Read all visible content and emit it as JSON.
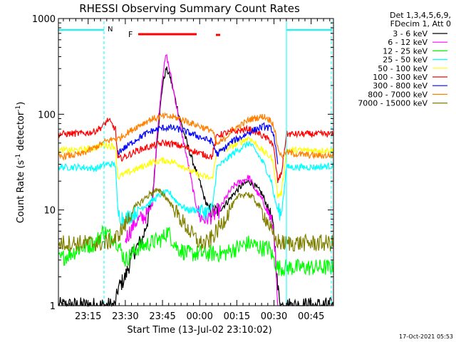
{
  "chart_data": {
    "type": "line",
    "title": "RHESSI Observing Summary Count Rates",
    "xlabel": "Start Time (13-Jul-02 23:10:02)",
    "ylabel_main": "Count Rate (s",
    "ylabel_sup1": "-1",
    "ylabel_mid": " detector",
    "ylabel_sup2": "-1",
    "ylabel_end": ")",
    "yscale": "log",
    "ylim": [
      1,
      1000
    ],
    "xlim_minutes": [
      -12,
      99
    ],
    "y_ticks": [
      {
        "value": 1000,
        "label": "1000"
      },
      {
        "value": 100,
        "label": "100"
      },
      {
        "value": 10,
        "label": "10"
      },
      {
        "value": 1,
        "label": "1"
      }
    ],
    "x_ticks": [
      {
        "minutes": 0,
        "label": "23:15"
      },
      {
        "minutes": 15,
        "label": "23:30"
      },
      {
        "minutes": 30,
        "label": "23:45"
      },
      {
        "minutes": 45,
        "label": "00:00"
      },
      {
        "minutes": 60,
        "label": "00:15"
      },
      {
        "minutes": 75,
        "label": "00:30"
      },
      {
        "minutes": 90,
        "label": "00:45"
      }
    ],
    "legend_header": [
      "Det 1,3,4,5,6,9,",
      "FDecim 1, Att 0"
    ],
    "series": [
      {
        "name": "3 - 6 keV",
        "color": "#000000",
        "points": [
          [
            -12,
            1
          ],
          [
            11,
            1
          ],
          [
            12,
            1.5
          ],
          [
            15,
            2
          ],
          [
            18,
            3.5
          ],
          [
            22,
            5
          ],
          [
            24,
            8
          ],
          [
            26,
            14
          ],
          [
            28,
            60
          ],
          [
            30,
            200
          ],
          [
            31.5,
            300
          ],
          [
            33,
            250
          ],
          [
            35,
            150
          ],
          [
            37,
            90
          ],
          [
            39,
            60
          ],
          [
            41,
            40
          ],
          [
            43,
            28
          ],
          [
            45,
            20
          ],
          [
            47,
            13
          ],
          [
            49,
            10
          ],
          [
            51,
            9.5
          ],
          [
            53,
            10
          ],
          [
            56,
            12
          ],
          [
            59,
            15
          ],
          [
            62,
            18
          ],
          [
            65,
            20
          ],
          [
            67,
            18
          ],
          [
            70,
            15
          ],
          [
            73,
            10
          ],
          [
            75,
            6
          ],
          [
            76.5,
            1.5
          ],
          [
            78,
            1
          ],
          [
            99,
            1
          ]
        ]
      },
      {
        "name": "6 - 12 keV",
        "color": "#ff00ff",
        "points": [
          [
            15,
            5
          ],
          [
            17,
            6
          ],
          [
            19,
            7.5
          ],
          [
            21,
            8
          ],
          [
            24,
            9
          ],
          [
            26,
            12
          ],
          [
            28,
            70
          ],
          [
            30,
            250
          ],
          [
            31.5,
            420
          ],
          [
            33,
            280
          ],
          [
            35,
            150
          ],
          [
            37,
            80
          ],
          [
            39,
            45
          ],
          [
            41,
            25
          ],
          [
            43,
            13
          ],
          [
            45,
            8.5
          ],
          [
            47,
            8
          ],
          [
            49,
            8.5
          ],
          [
            51,
            9
          ],
          [
            53,
            10
          ],
          [
            56,
            14
          ],
          [
            59,
            18
          ],
          [
            62,
            20
          ],
          [
            65,
            22
          ],
          [
            67,
            17
          ],
          [
            70,
            13
          ],
          [
            73,
            9
          ],
          [
            75,
            6
          ],
          [
            76.5,
            1
          ]
        ]
      },
      {
        "name": "12 - 25 keV",
        "color": "#00ff00",
        "points": [
          [
            -12,
            3
          ],
          [
            -3,
            4
          ],
          [
            3,
            4.5
          ],
          [
            6,
            6
          ],
          [
            11,
            5
          ],
          [
            15,
            3
          ],
          [
            20,
            4
          ],
          [
            25,
            4.5
          ],
          [
            30,
            5
          ],
          [
            32,
            6
          ],
          [
            36,
            4
          ],
          [
            40,
            3.5
          ],
          [
            45,
            3.5
          ],
          [
            50,
            3.5
          ],
          [
            55,
            3.5
          ],
          [
            60,
            4
          ],
          [
            65,
            4.5
          ],
          [
            70,
            4
          ],
          [
            73,
            4
          ],
          [
            75,
            3
          ],
          [
            76.5,
            2.5
          ],
          [
            78,
            2.5
          ],
          [
            80,
            2.5
          ],
          [
            85,
            2.5
          ],
          [
            90,
            2.5
          ],
          [
            99,
            2.5
          ]
        ]
      },
      {
        "name": "25 - 50 keV",
        "color": "#00ffff",
        "points": [
          [
            -12,
            28
          ],
          [
            -3,
            28
          ],
          [
            3,
            27
          ],
          [
            7,
            30
          ],
          [
            11,
            30
          ],
          [
            12,
            9
          ],
          [
            15,
            8
          ],
          [
            20,
            10
          ],
          [
            25,
            12
          ],
          [
            30,
            15
          ],
          [
            33,
            15
          ],
          [
            36,
            12
          ],
          [
            40,
            10
          ],
          [
            45,
            10
          ],
          [
            48,
            9.5
          ],
          [
            50,
            10
          ],
          [
            52,
            28
          ],
          [
            55,
            32
          ],
          [
            58,
            38
          ],
          [
            62,
            45
          ],
          [
            65,
            50
          ],
          [
            68,
            40
          ],
          [
            71,
            30
          ],
          [
            74,
            20
          ],
          [
            75,
            14
          ],
          [
            76.5,
            10
          ],
          [
            78,
            9
          ],
          [
            80,
            28
          ],
          [
            85,
            28
          ],
          [
            92,
            28
          ],
          [
            99,
            29
          ]
        ]
      },
      {
        "name": "50 - 100 keV",
        "color": "#ffff00",
        "points": [
          [
            -12,
            42
          ],
          [
            -3,
            42
          ],
          [
            3,
            45
          ],
          [
            6,
            48
          ],
          [
            11,
            46
          ],
          [
            12,
            22
          ],
          [
            15,
            24
          ],
          [
            20,
            27
          ],
          [
            25,
            31
          ],
          [
            30,
            33
          ],
          [
            34,
            32
          ],
          [
            38,
            29
          ],
          [
            42,
            25
          ],
          [
            45,
            23
          ],
          [
            48,
            22
          ],
          [
            50,
            21
          ],
          [
            52,
            40
          ],
          [
            55,
            43
          ],
          [
            58,
            46
          ],
          [
            62,
            52
          ],
          [
            65,
            57
          ],
          [
            68,
            48
          ],
          [
            71,
            40
          ],
          [
            74,
            35
          ],
          [
            75,
            28
          ],
          [
            76.5,
            14
          ],
          [
            78,
            15
          ],
          [
            80,
            42
          ],
          [
            85,
            42
          ],
          [
            92,
            42
          ],
          [
            99,
            42
          ]
        ]
      },
      {
        "name": "100 - 300 keV",
        "color": "#ff0000",
        "points": [
          [
            -12,
            62
          ],
          [
            -3,
            63
          ],
          [
            2,
            65
          ],
          [
            6,
            75
          ],
          [
            8,
            88
          ],
          [
            11,
            70
          ],
          [
            12,
            34
          ],
          [
            15,
            36
          ],
          [
            20,
            42
          ],
          [
            25,
            46
          ],
          [
            30,
            50
          ],
          [
            34,
            49
          ],
          [
            38,
            46
          ],
          [
            42,
            42
          ],
          [
            45,
            39
          ],
          [
            48,
            37
          ],
          [
            50,
            36
          ],
          [
            52,
            60
          ],
          [
            55,
            63
          ],
          [
            58,
            65
          ],
          [
            62,
            68
          ],
          [
            65,
            70
          ],
          [
            68,
            65
          ],
          [
            71,
            58
          ],
          [
            74,
            52
          ],
          [
            75,
            42
          ],
          [
            76.5,
            20
          ],
          [
            78,
            24
          ],
          [
            80,
            62
          ],
          [
            85,
            62
          ],
          [
            92,
            62
          ],
          [
            99,
            62
          ]
        ]
      },
      {
        "name": "300 - 800 keV",
        "color": "#0000ff",
        "points": [
          [
            12,
            40
          ],
          [
            15,
            45
          ],
          [
            20,
            56
          ],
          [
            25,
            66
          ],
          [
            30,
            72
          ],
          [
            34,
            72
          ],
          [
            38,
            68
          ],
          [
            42,
            62
          ],
          [
            45,
            58
          ],
          [
            48,
            54
          ],
          [
            50,
            52
          ],
          [
            52,
            38
          ],
          [
            55,
            44
          ],
          [
            58,
            52
          ],
          [
            62,
            58
          ],
          [
            65,
            65
          ],
          [
            68,
            70
          ],
          [
            71,
            75
          ],
          [
            74,
            70
          ],
          [
            75,
            60
          ],
          [
            76.5,
            30
          ]
        ]
      },
      {
        "name": "800 - 7000 keV",
        "color": "#ff8000",
        "points": [
          [
            -12,
            36
          ],
          [
            -3,
            38
          ],
          [
            3,
            45
          ],
          [
            7,
            52
          ],
          [
            11,
            56
          ],
          [
            12,
            55
          ],
          [
            15,
            62
          ],
          [
            20,
            75
          ],
          [
            25,
            88
          ],
          [
            30,
            95
          ],
          [
            34,
            94
          ],
          [
            38,
            88
          ],
          [
            42,
            80
          ],
          [
            45,
            75
          ],
          [
            48,
            70
          ],
          [
            50,
            68
          ],
          [
            52,
            48
          ],
          [
            55,
            55
          ],
          [
            58,
            68
          ],
          [
            62,
            78
          ],
          [
            65,
            88
          ],
          [
            68,
            92
          ],
          [
            71,
            95
          ],
          [
            74,
            85
          ],
          [
            75,
            75
          ],
          [
            76.5,
            45
          ],
          [
            78,
            36
          ],
          [
            80,
            40
          ],
          [
            85,
            38
          ],
          [
            92,
            37
          ],
          [
            99,
            37
          ]
        ]
      },
      {
        "name": "7000 - 15000 keV",
        "color": "#808000",
        "points": [
          [
            -12,
            4.5
          ],
          [
            -3,
            4.5
          ],
          [
            3,
            4.5
          ],
          [
            7,
            4.5
          ],
          [
            11,
            5
          ],
          [
            15,
            7
          ],
          [
            18,
            10
          ],
          [
            21,
            12
          ],
          [
            24,
            14
          ],
          [
            27,
            16
          ],
          [
            30,
            15
          ],
          [
            33,
            12
          ],
          [
            36,
            9
          ],
          [
            39,
            7
          ],
          [
            42,
            5.5
          ],
          [
            45,
            4.5
          ],
          [
            48,
            4.5
          ],
          [
            52,
            6
          ],
          [
            55,
            8
          ],
          [
            58,
            11
          ],
          [
            61,
            14
          ],
          [
            64,
            15
          ],
          [
            67,
            13
          ],
          [
            70,
            10
          ],
          [
            73,
            7
          ],
          [
            75,
            5
          ],
          [
            78,
            4.5
          ],
          [
            82,
            4.5
          ],
          [
            88,
            4.5
          ],
          [
            99,
            4.5
          ]
        ]
      }
    ],
    "flags": [
      {
        "label": "N",
        "color": "#00ffff"
      },
      {
        "label": "F",
        "color": "#ff0000"
      }
    ],
    "timestamp": "17-Oct-2021 05:53"
  }
}
